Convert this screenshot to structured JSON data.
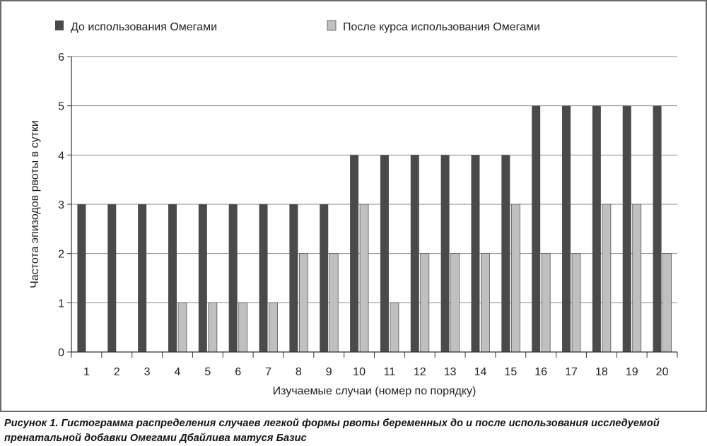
{
  "chart_data": {
    "type": "bar",
    "categories": [
      "1",
      "2",
      "3",
      "4",
      "5",
      "6",
      "7",
      "8",
      "9",
      "10",
      "11",
      "12",
      "13",
      "14",
      "15",
      "16",
      "17",
      "18",
      "19",
      "20"
    ],
    "series": [
      {
        "name": "До использования Омегами",
        "color": "#4a4a4a",
        "values": [
          3,
          3,
          3,
          3,
          3,
          3,
          3,
          3,
          3,
          4,
          4,
          4,
          4,
          4,
          4,
          5,
          5,
          5,
          5,
          5
        ]
      },
      {
        "name": "После курса использования Омегами",
        "color": "#c0c0c0",
        "values": [
          0,
          0,
          0,
          1,
          1,
          1,
          1,
          2,
          2,
          3,
          1,
          2,
          2,
          2,
          3,
          2,
          2,
          3,
          3,
          2
        ]
      }
    ],
    "xlabel": "Изучаемые случаи (номер по порядку)",
    "ylabel": "Частота эпизодов рвоты в сутки",
    "ylim": [
      0,
      6
    ],
    "yticks": [
      0,
      1,
      2,
      3,
      4,
      5,
      6
    ],
    "grid": true,
    "legend_position": "top"
  },
  "caption": "Рисунок 1. Гистограмма распределения случаев легкой формы рвоты беременных до и после использования исследуемой пренатальной добавки Омегами Дбайлива матуся Базис"
}
